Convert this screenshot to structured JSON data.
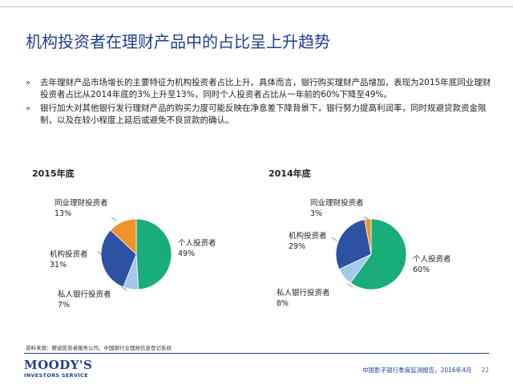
{
  "title": "机构投资者在理财产品中的占比呈上升趋势",
  "bullets": [
    "去年理财产品市场增长的主要特征为机构投资者占比上升。具体而言，银行购买理财产品增加，表现为2015年底同业理财投资者占比从2014年底的3%上升至13%，同时个人投资者占比从一年前的60%下降至49%。",
    "银行加大对其他银行发行理财产品的购买力度可能反映在净息差下降背景下，银行努力提高利润率，同时规避贷款资金限制，以及在较小程度上延后或避免不良贷款的确认。"
  ],
  "chart_data": [
    {
      "type": "pie",
      "title": "2015年底",
      "categories": [
        "个人投资者",
        "私人银行投资者",
        "机构投资者",
        "同业理财投资者"
      ],
      "values": [
        49,
        7,
        31,
        13
      ],
      "value_labels": [
        "49%",
        "7%",
        "31%",
        "13%"
      ],
      "colors": [
        "#19ad7b",
        "#a4c8ea",
        "#2d51a3",
        "#f0932b"
      ]
    },
    {
      "type": "pie",
      "title": "2014年底",
      "categories": [
        "个人投资者",
        "私人银行投资者",
        "机构投资者",
        "同业理财投资者"
      ],
      "values": [
        60,
        8,
        29,
        3
      ],
      "value_labels": [
        "60%",
        "8%",
        "29%",
        "3%"
      ],
      "colors": [
        "#19ad7b",
        "#a4c8ea",
        "#2d51a3",
        "#f0932b"
      ]
    }
  ],
  "source": "资料来源：穆迪投资者服务公司、中国银行业理财信息登记系统",
  "logo": {
    "name": "MOODY'S",
    "tagline": "INVESTORS SERVICE"
  },
  "footer": {
    "report": "中国影子银行季度监测报告，2016年4月",
    "page": "22"
  }
}
